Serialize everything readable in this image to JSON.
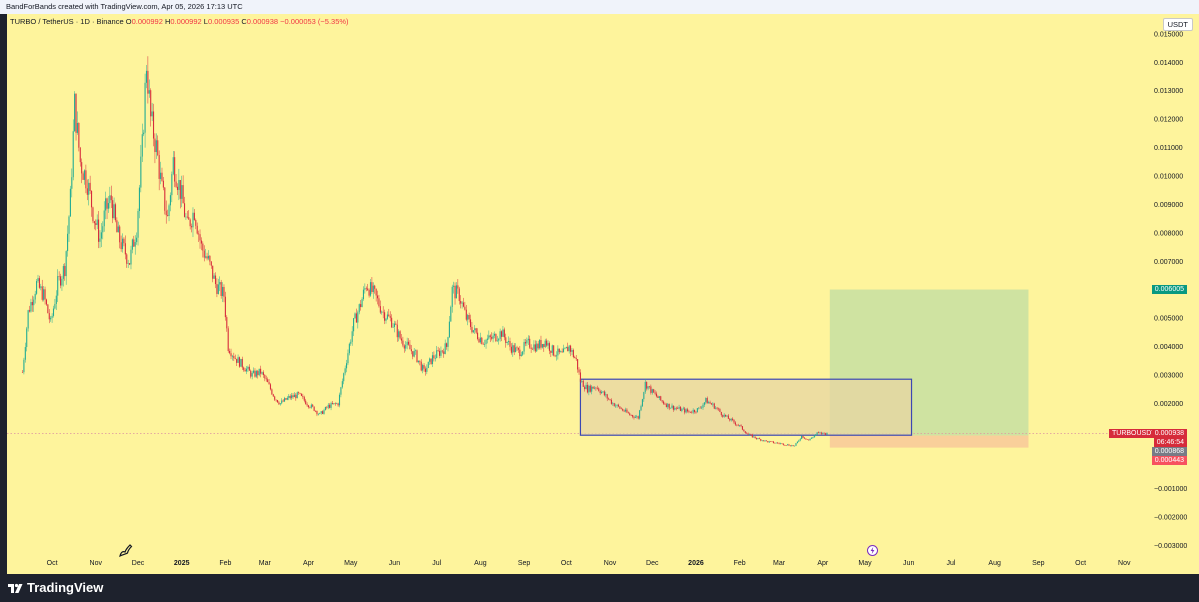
{
  "header": {
    "attribution": "BandForBands created with TradingView.com, Apr 05, 2026 17:13 UTC"
  },
  "legend": {
    "symbol": "TURBO / TetherUS · 1D · Binance",
    "o_label": "O",
    "o_value": "0.000992",
    "h_label": "H",
    "h_value": "0.000992",
    "l_label": "L",
    "l_value": "0.000935",
    "c_label": "C",
    "c_value": "0.000938",
    "change": "−0.000053 (−5.35%)"
  },
  "currency": "USDT",
  "price_tags": {
    "target": "0.006005",
    "symbol": "TURBOUSDT",
    "last": "0.000938",
    "countdown": "06:46:54",
    "entry": "0.000868",
    "stop": "0.000443"
  },
  "footer": {
    "brand": "TradingView"
  },
  "colors": {
    "background": "#fef49c",
    "up": "#22ab94",
    "down": "#d62b3b",
    "target_zone": "#cfe3a1",
    "stop_zone": "#f9cf9a",
    "range_box_fill": "#e7d5a3",
    "range_box_border": "#3b47b3",
    "target_tag": "#089981",
    "symbol_tag": "#d62b3b"
  },
  "icons": {
    "drawing": "pencil-icon",
    "replay": "lightning-icon",
    "logo": "tradingview-logo-icon"
  },
  "chart_data": {
    "type": "candlestick",
    "x_ticks": [
      "Oct",
      "Nov",
      "Dec",
      "2025",
      "Feb",
      "Mar",
      "Apr",
      "May",
      "Jun",
      "Jul",
      "Aug",
      "Sep",
      "Oct",
      "Nov",
      "Dec",
      "2026",
      "Feb",
      "Mar",
      "Apr",
      "May",
      "Jun",
      "Jul",
      "Aug",
      "Sep",
      "Oct",
      "Nov"
    ],
    "x_tick_dates": [
      "2024-10-01",
      "2024-11-01",
      "2024-12-01",
      "2025-01-01",
      "2025-02-01",
      "2025-03-01",
      "2025-04-01",
      "2025-05-01",
      "2025-06-01",
      "2025-07-01",
      "2025-08-01",
      "2025-09-01",
      "2025-10-01",
      "2025-11-01",
      "2025-12-01",
      "2026-01-01",
      "2026-02-01",
      "2026-03-01",
      "2026-04-01",
      "2026-05-01",
      "2026-06-01",
      "2026-07-01",
      "2026-08-01",
      "2026-09-01",
      "2026-10-01",
      "2026-11-01"
    ],
    "y_ticks": [
      0.015,
      0.014,
      0.013,
      0.012,
      0.011,
      0.01,
      0.009,
      0.008,
      0.007,
      0.006,
      0.005,
      0.004,
      0.003,
      0.002,
      0,
      -0.001,
      -0.002,
      -0.003
    ],
    "y_tick_labels": [
      "0.015000",
      "0.014000",
      "0.013000",
      "0.012000",
      "0.011000",
      "0.010000",
      "0.009000",
      "0.008000",
      "0.007000",
      "0.006000",
      "0.005000",
      "0.004000",
      "0.003000",
      "0.002000",
      "0.000000",
      "−0.001000",
      "−0.002000",
      "−0.003000"
    ],
    "ylim": [
      -0.0033,
      0.0157
    ],
    "xlim": [
      "2024-08-30",
      "2026-11-15"
    ],
    "grid": false,
    "series": [
      {
        "name": "TURBO / TetherUS",
        "approx_close": [
          [
            "2024-09-10",
            0.0031
          ],
          [
            "2024-09-14",
            0.0052
          ],
          [
            "2024-09-20",
            0.0062
          ],
          [
            "2024-09-25",
            0.0058
          ],
          [
            "2024-09-30",
            0.0048
          ],
          [
            "2024-10-05",
            0.0062
          ],
          [
            "2024-10-10",
            0.0068
          ],
          [
            "2024-10-14",
            0.0092
          ],
          [
            "2024-10-17",
            0.0125
          ],
          [
            "2024-10-21",
            0.0105
          ],
          [
            "2024-10-26",
            0.0098
          ],
          [
            "2024-10-31",
            0.0085
          ],
          [
            "2024-11-04",
            0.0078
          ],
          [
            "2024-11-08",
            0.0088
          ],
          [
            "2024-11-12",
            0.0092
          ],
          [
            "2024-11-16",
            0.008
          ],
          [
            "2024-11-20",
            0.0075
          ],
          [
            "2024-11-25",
            0.007
          ],
          [
            "2024-11-30",
            0.0082
          ],
          [
            "2024-12-04",
            0.011
          ],
          [
            "2024-12-07",
            0.014
          ],
          [
            "2024-12-10",
            0.012
          ],
          [
            "2024-12-14",
            0.011
          ],
          [
            "2024-12-18",
            0.0095
          ],
          [
            "2024-12-22",
            0.0085
          ],
          [
            "2024-12-26",
            0.0105
          ],
          [
            "2024-12-31",
            0.0095
          ],
          [
            "2025-01-05",
            0.0082
          ],
          [
            "2025-01-10",
            0.0088
          ],
          [
            "2025-01-15",
            0.0075
          ],
          [
            "2025-01-20",
            0.007
          ],
          [
            "2025-01-25",
            0.0062
          ],
          [
            "2025-01-31",
            0.0058
          ],
          [
            "2025-02-03",
            0.004
          ],
          [
            "2025-02-08",
            0.0036
          ],
          [
            "2025-02-14",
            0.0033
          ],
          [
            "2025-02-20",
            0.003
          ],
          [
            "2025-02-26",
            0.0031
          ],
          [
            "2025-03-03",
            0.0027
          ],
          [
            "2025-03-08",
            0.0022
          ],
          [
            "2025-03-12",
            0.002
          ],
          [
            "2025-03-18",
            0.0022
          ],
          [
            "2025-03-25",
            0.0023
          ],
          [
            "2025-03-31",
            0.002
          ],
          [
            "2025-04-05",
            0.0018
          ],
          [
            "2025-04-09",
            0.0016
          ],
          [
            "2025-04-15",
            0.0019
          ],
          [
            "2025-04-22",
            0.002
          ],
          [
            "2025-04-27",
            0.0033
          ],
          [
            "2025-05-03",
            0.0048
          ],
          [
            "2025-05-08",
            0.0055
          ],
          [
            "2025-05-12",
            0.0062
          ],
          [
            "2025-05-18",
            0.0058
          ],
          [
            "2025-05-24",
            0.0052
          ],
          [
            "2025-05-30",
            0.0049
          ],
          [
            "2025-06-05",
            0.0043
          ],
          [
            "2025-06-10",
            0.004
          ],
          [
            "2025-06-16",
            0.0037
          ],
          [
            "2025-06-22",
            0.0031
          ],
          [
            "2025-06-28",
            0.0036
          ],
          [
            "2025-07-03",
            0.0038
          ],
          [
            "2025-07-08",
            0.004
          ],
          [
            "2025-07-12",
            0.006
          ],
          [
            "2025-07-17",
            0.0058
          ],
          [
            "2025-07-22",
            0.005
          ],
          [
            "2025-07-28",
            0.0045
          ],
          [
            "2025-08-03",
            0.0042
          ],
          [
            "2025-08-10",
            0.0043
          ],
          [
            "2025-08-16",
            0.0045
          ],
          [
            "2025-08-22",
            0.004
          ],
          [
            "2025-08-28",
            0.0038
          ],
          [
            "2025-09-04",
            0.0041
          ],
          [
            "2025-09-10",
            0.004
          ],
          [
            "2025-09-16",
            0.0042
          ],
          [
            "2025-09-22",
            0.0038
          ],
          [
            "2025-09-28",
            0.0037
          ],
          [
            "2025-10-03",
            0.004
          ],
          [
            "2025-10-08",
            0.0035
          ],
          [
            "2025-10-11",
            0.0028
          ],
          [
            "2025-10-16",
            0.0025
          ],
          [
            "2025-10-22",
            0.0026
          ],
          [
            "2025-10-28",
            0.0023
          ],
          [
            "2025-11-03",
            0.002
          ],
          [
            "2025-11-09",
            0.0018
          ],
          [
            "2025-11-15",
            0.0016
          ],
          [
            "2025-11-21",
            0.0015
          ],
          [
            "2025-11-26",
            0.0027
          ],
          [
            "2025-12-01",
            0.0024
          ],
          [
            "2025-12-07",
            0.0021
          ],
          [
            "2025-12-13",
            0.0019
          ],
          [
            "2025-12-20",
            0.0018
          ],
          [
            "2025-12-27",
            0.0017
          ],
          [
            "2026-01-03",
            0.0018
          ],
          [
            "2026-01-08",
            0.0021
          ],
          [
            "2026-01-14",
            0.0019
          ],
          [
            "2026-01-20",
            0.0016
          ],
          [
            "2026-01-26",
            0.0014
          ],
          [
            "2026-02-01",
            0.0012
          ],
          [
            "2026-02-07",
            0.0009
          ],
          [
            "2026-02-14",
            0.00075
          ],
          [
            "2026-02-21",
            0.00065
          ],
          [
            "2026-02-28",
            0.0006
          ],
          [
            "2026-03-06",
            0.00055
          ],
          [
            "2026-03-12",
            0.0005
          ],
          [
            "2026-03-17",
            0.00085
          ],
          [
            "2026-03-22",
            0.0007
          ],
          [
            "2026-03-28",
            0.00095
          ],
          [
            "2026-04-05",
            0.000938
          ]
        ]
      }
    ],
    "long_position": {
      "start": "2026-04-06",
      "end": "2026-08-25",
      "entry": 0.000868,
      "target": 0.006005,
      "stop": 0.000443
    },
    "range_box": {
      "start": "2025-10-11",
      "end": "2026-06-03",
      "top": 0.00285,
      "bottom": 0.00088
    }
  }
}
